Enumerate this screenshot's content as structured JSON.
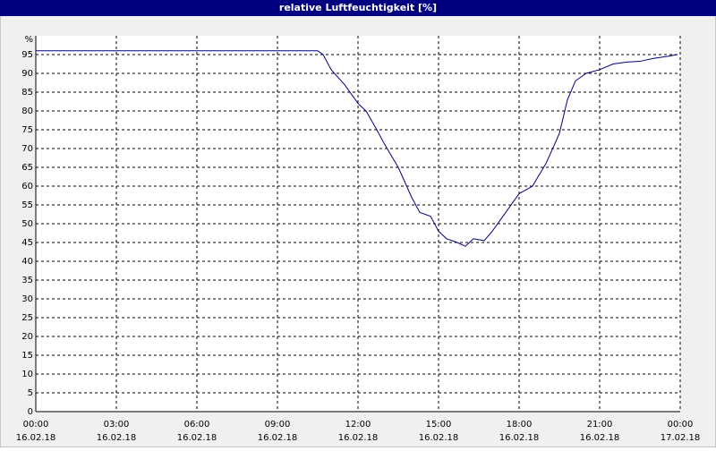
{
  "chart_data": {
    "type": "line",
    "title": "relative Luftfeuchtigkeit [%]",
    "y_unit": "%",
    "xlim": [
      0,
      24
    ],
    "ylim": [
      0,
      100
    ],
    "yticks": [
      0,
      5,
      10,
      15,
      20,
      25,
      30,
      35,
      40,
      45,
      50,
      55,
      60,
      65,
      70,
      75,
      80,
      85,
      90,
      95
    ],
    "xticks": [
      {
        "value": 0,
        "label": "00:00"
      },
      {
        "value": 3,
        "label": "03:00"
      },
      {
        "value": 6,
        "label": "06:00"
      },
      {
        "value": 9,
        "label": "09:00"
      },
      {
        "value": 12,
        "label": "12:00"
      },
      {
        "value": 15,
        "label": "15:00"
      },
      {
        "value": 18,
        "label": "18:00"
      },
      {
        "value": 21,
        "label": "21:00"
      },
      {
        "value": 24,
        "label": "00:00"
      }
    ],
    "xtick_dates": [
      "16.02.18",
      "16.02.18",
      "16.02.18",
      "16.02.18",
      "16.02.18",
      "16.02.18",
      "16.02.18",
      "16.02.18",
      "17.02.18"
    ],
    "grid": true,
    "series": [
      {
        "color": "#000080",
        "x": [
          0,
          10.5,
          10.7,
          11,
          11.5,
          12,
          12.3,
          12.7,
          13,
          13.5,
          14,
          14.3,
          14.7,
          15,
          15.3,
          15.7,
          16,
          16.3,
          16.7,
          17,
          17.5,
          18,
          18.5,
          19,
          19.5,
          19.8,
          20.1,
          20.5,
          21,
          21.5,
          22,
          22.5,
          23,
          23.5,
          23.9
        ],
        "values": [
          96,
          96,
          95,
          91,
          87,
          82,
          80,
          75,
          71,
          65,
          57,
          53,
          52,
          48,
          46,
          45,
          44,
          46,
          45.5,
          48,
          53,
          58,
          60,
          66,
          74,
          83,
          88,
          90,
          91,
          92.5,
          93,
          93.2,
          94,
          94.5,
          95
        ]
      }
    ]
  }
}
